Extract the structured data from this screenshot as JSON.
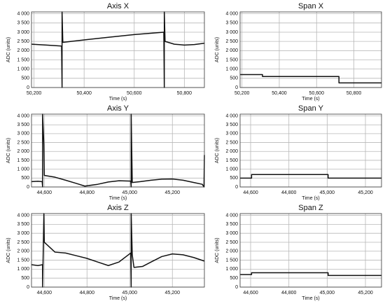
{
  "chart_data": [
    {
      "type": "line",
      "title": "Axis X",
      "xlabel": "Time (s)",
      "ylabel": "ADC (units)",
      "color": "#111111",
      "grid": true,
      "xlim": [
        50190,
        50880
      ],
      "ylim": [
        0,
        4100
      ],
      "xticks": [
        {
          "value": 50200,
          "label": "50,200"
        },
        {
          "value": 50400,
          "label": "50,400"
        },
        {
          "value": 50600,
          "label": "50,600"
        },
        {
          "value": 50800,
          "label": "50,800"
        }
      ],
      "yticks": [
        0,
        500,
        {
          "value": 1000,
          "label": "1 000"
        },
        {
          "value": 1500,
          "label": "1 500"
        },
        {
          "value": 2000,
          "label": "2 000"
        },
        {
          "value": 2500,
          "label": "2 500"
        },
        {
          "value": 3000,
          "label": "3 000"
        },
        {
          "value": 3500,
          "label": "3 500"
        },
        {
          "value": 4000,
          "label": "4 000"
        }
      ],
      "x": [
        50190,
        50250,
        50310,
        50312,
        50312,
        50315,
        50400,
        50500,
        50600,
        50700,
        50718,
        50720,
        50720,
        50723,
        50760,
        50800,
        50840,
        50880
      ],
      "values": [
        2350,
        2300,
        2250,
        0,
        4100,
        2450,
        2580,
        2730,
        2870,
        2980,
        3000,
        0,
        4100,
        2500,
        2350,
        2300,
        2330,
        2400
      ]
    },
    {
      "type": "line",
      "title": "Span X",
      "xlabel": "Time (s)",
      "ylabel": "ADC (units)",
      "color": "#111111",
      "grid": true,
      "xlim": [
        50190,
        50948
      ],
      "ylim": [
        0,
        4100
      ],
      "xticks": [
        {
          "value": 50200,
          "label": "50,200"
        },
        {
          "value": 50400,
          "label": "50,400"
        },
        {
          "value": 50600,
          "label": "50,600"
        },
        {
          "value": 50800,
          "label": "50,800"
        }
      ],
      "yticks": [
        0,
        500,
        {
          "value": 1000,
          "label": "1 000"
        },
        {
          "value": 1500,
          "label": "1 500"
        },
        {
          "value": 2000,
          "label": "2 000"
        },
        {
          "value": 2500,
          "label": "2 500"
        },
        {
          "value": 3000,
          "label": "3 000"
        },
        {
          "value": 3500,
          "label": "3 500"
        },
        {
          "value": 4000,
          "label": "4 000"
        }
      ],
      "x": [
        50190,
        50310,
        50310,
        50720,
        50720,
        50948
      ],
      "values": [
        700,
        700,
        600,
        600,
        250,
        250
      ]
    },
    {
      "type": "line",
      "title": "Axis Y",
      "xlabel": "Time (s)",
      "ylabel": "ADC (units)",
      "color": "#111111",
      "grid": true,
      "xlim": [
        44540,
        45350
      ],
      "ylim": [
        0,
        4100
      ],
      "xticks": [
        {
          "value": 44600,
          "label": "44,600"
        },
        {
          "value": 44800,
          "label": "44,800"
        },
        {
          "value": 45000,
          "label": "45,000"
        },
        {
          "value": 45200,
          "label": "45,200"
        }
      ],
      "yticks": [
        0,
        500,
        {
          "value": 1000,
          "label": "1 000"
        },
        {
          "value": 1500,
          "label": "1 500"
        },
        {
          "value": 2000,
          "label": "2 000"
        },
        {
          "value": 2500,
          "label": "2 500"
        },
        {
          "value": 3000,
          "label": "3 000"
        },
        {
          "value": 3500,
          "label": "3 500"
        },
        {
          "value": 4000,
          "label": "4 000"
        }
      ],
      "x": [
        44540,
        44570,
        44590,
        44592,
        44592,
        44598,
        44600,
        44650,
        44700,
        44750,
        44790,
        44850,
        44900,
        44950,
        45005,
        45007,
        45007,
        45012,
        45050,
        45100,
        45150,
        45200,
        45250,
        45300,
        45340,
        45348,
        45350
      ],
      "values": [
        300,
        320,
        300,
        0,
        4100,
        2400,
        650,
        550,
        380,
        200,
        50,
        150,
        280,
        350,
        330,
        0,
        4100,
        250,
        300,
        380,
        440,
        450,
        380,
        250,
        150,
        0,
        1800
      ]
    },
    {
      "type": "line",
      "title": "Span Y",
      "xlabel": "Time (s)",
      "ylabel": "ADC (units)",
      "color": "#111111",
      "grid": true,
      "xlim": [
        44545,
        45284
      ],
      "ylim": [
        0,
        4100
      ],
      "xticks": [
        {
          "value": 44600,
          "label": "44,600"
        },
        {
          "value": 44800,
          "label": "44,800"
        },
        {
          "value": 45000,
          "label": "45,000"
        },
        {
          "value": 45200,
          "label": "45,200"
        }
      ],
      "yticks": [
        0,
        500,
        {
          "value": 1000,
          "label": "1 000"
        },
        {
          "value": 1500,
          "label": "1 500"
        },
        {
          "value": 2000,
          "label": "2 000"
        },
        {
          "value": 2500,
          "label": "2 500"
        },
        {
          "value": 3000,
          "label": "3 000"
        },
        {
          "value": 3500,
          "label": "3 500"
        },
        {
          "value": 4000,
          "label": "4 000"
        }
      ],
      "x": [
        44545,
        44605,
        44605,
        45005,
        45005,
        45284
      ],
      "values": [
        500,
        500,
        700,
        700,
        500,
        500
      ]
    },
    {
      "type": "line",
      "title": "Axis Z",
      "xlabel": "Time (s)",
      "ylabel": "ADC (units)",
      "color": "#111111",
      "grid": true,
      "xlim": [
        44540,
        45350
      ],
      "ylim": [
        0,
        4100
      ],
      "xticks": [
        {
          "value": 44600,
          "label": "44,600"
        },
        {
          "value": 44800,
          "label": "44,800"
        },
        {
          "value": 45000,
          "label": "45,000"
        },
        {
          "value": 45200,
          "label": "45,200"
        }
      ],
      "yticks": [
        0,
        500,
        {
          "value": 1000,
          "label": "1 000"
        },
        {
          "value": 1500,
          "label": "1 500"
        },
        {
          "value": 2000,
          "label": "2 000"
        },
        {
          "value": 2500,
          "label": "2 500"
        },
        {
          "value": 3000,
          "label": "3 000"
        },
        {
          "value": 3500,
          "label": "3 500"
        },
        {
          "value": 4000,
          "label": "4 000"
        }
      ],
      "x": [
        44540,
        44570,
        44592,
        44592,
        44598,
        44600,
        44650,
        44700,
        44750,
        44800,
        44850,
        44900,
        44950,
        45005,
        45007,
        45007,
        45012,
        45020,
        45060,
        45100,
        45150,
        45200,
        45250,
        45300,
        45350
      ],
      "values": [
        1250,
        1200,
        1250,
        0,
        4100,
        2500,
        1950,
        1900,
        1750,
        1600,
        1400,
        1200,
        1400,
        1900,
        0,
        4100,
        1800,
        1100,
        1150,
        1400,
        1700,
        1850,
        1800,
        1650,
        1450
      ]
    },
    {
      "type": "line",
      "title": "Span Z",
      "xlabel": "Time (s)",
      "ylabel": "ADC (units)",
      "color": "#111111",
      "grid": true,
      "xlim": [
        44545,
        45284
      ],
      "ylim": [
        0,
        4100
      ],
      "xticks": [
        {
          "value": 44600,
          "label": "44,600"
        },
        {
          "value": 44800,
          "label": "44,800"
        },
        {
          "value": 45000,
          "label": "45,000"
        },
        {
          "value": 45200,
          "label": "45,200"
        }
      ],
      "yticks": [
        0,
        500,
        {
          "value": 1000,
          "label": "1 000"
        },
        {
          "value": 1500,
          "label": "1 500"
        },
        {
          "value": 2000,
          "label": "2 000"
        },
        {
          "value": 2500,
          "label": "2 500"
        },
        {
          "value": 3000,
          "label": "3 000"
        },
        {
          "value": 3500,
          "label": "3 500"
        },
        {
          "value": 4000,
          "label": "4 000"
        }
      ],
      "x": [
        44545,
        44605,
        44605,
        45005,
        45005,
        45284
      ],
      "values": [
        700,
        700,
        800,
        800,
        650,
        650
      ]
    }
  ]
}
